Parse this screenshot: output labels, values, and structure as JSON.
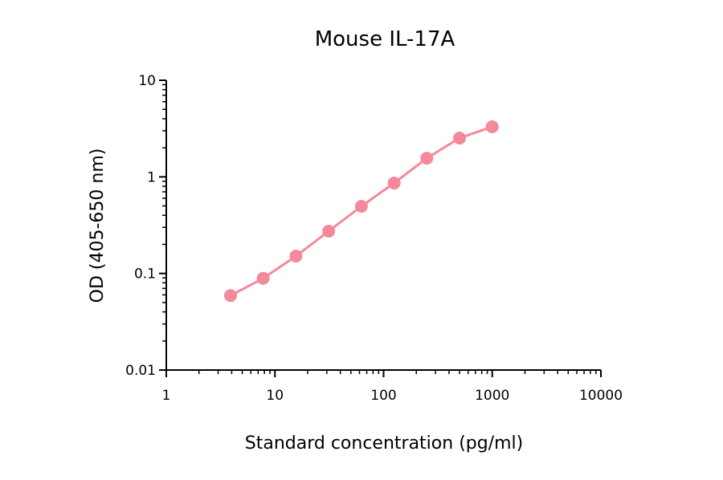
{
  "chart_data": {
    "type": "line",
    "title": "Mouse IL-17A",
    "xlabel": "Standard concentration (pg/ml)",
    "ylabel": "OD (405-650 nm)",
    "x_scale": "log",
    "y_scale": "log",
    "xlim": [
      1,
      10000
    ],
    "ylim": [
      0.01,
      10
    ],
    "x_ticks": [
      "1",
      "10",
      "100",
      "1000",
      "10000"
    ],
    "y_ticks": [
      "0.01",
      "0.1",
      "1",
      "10"
    ],
    "grid": false,
    "color": "#f4899a",
    "series": [
      {
        "x": [
          3.9,
          7.8,
          15.6,
          31.25,
          62.5,
          125,
          250,
          500,
          1000
        ],
        "y": [
          0.059,
          0.089,
          0.151,
          0.274,
          0.496,
          0.863,
          1.56,
          2.52,
          3.3
        ]
      }
    ]
  }
}
